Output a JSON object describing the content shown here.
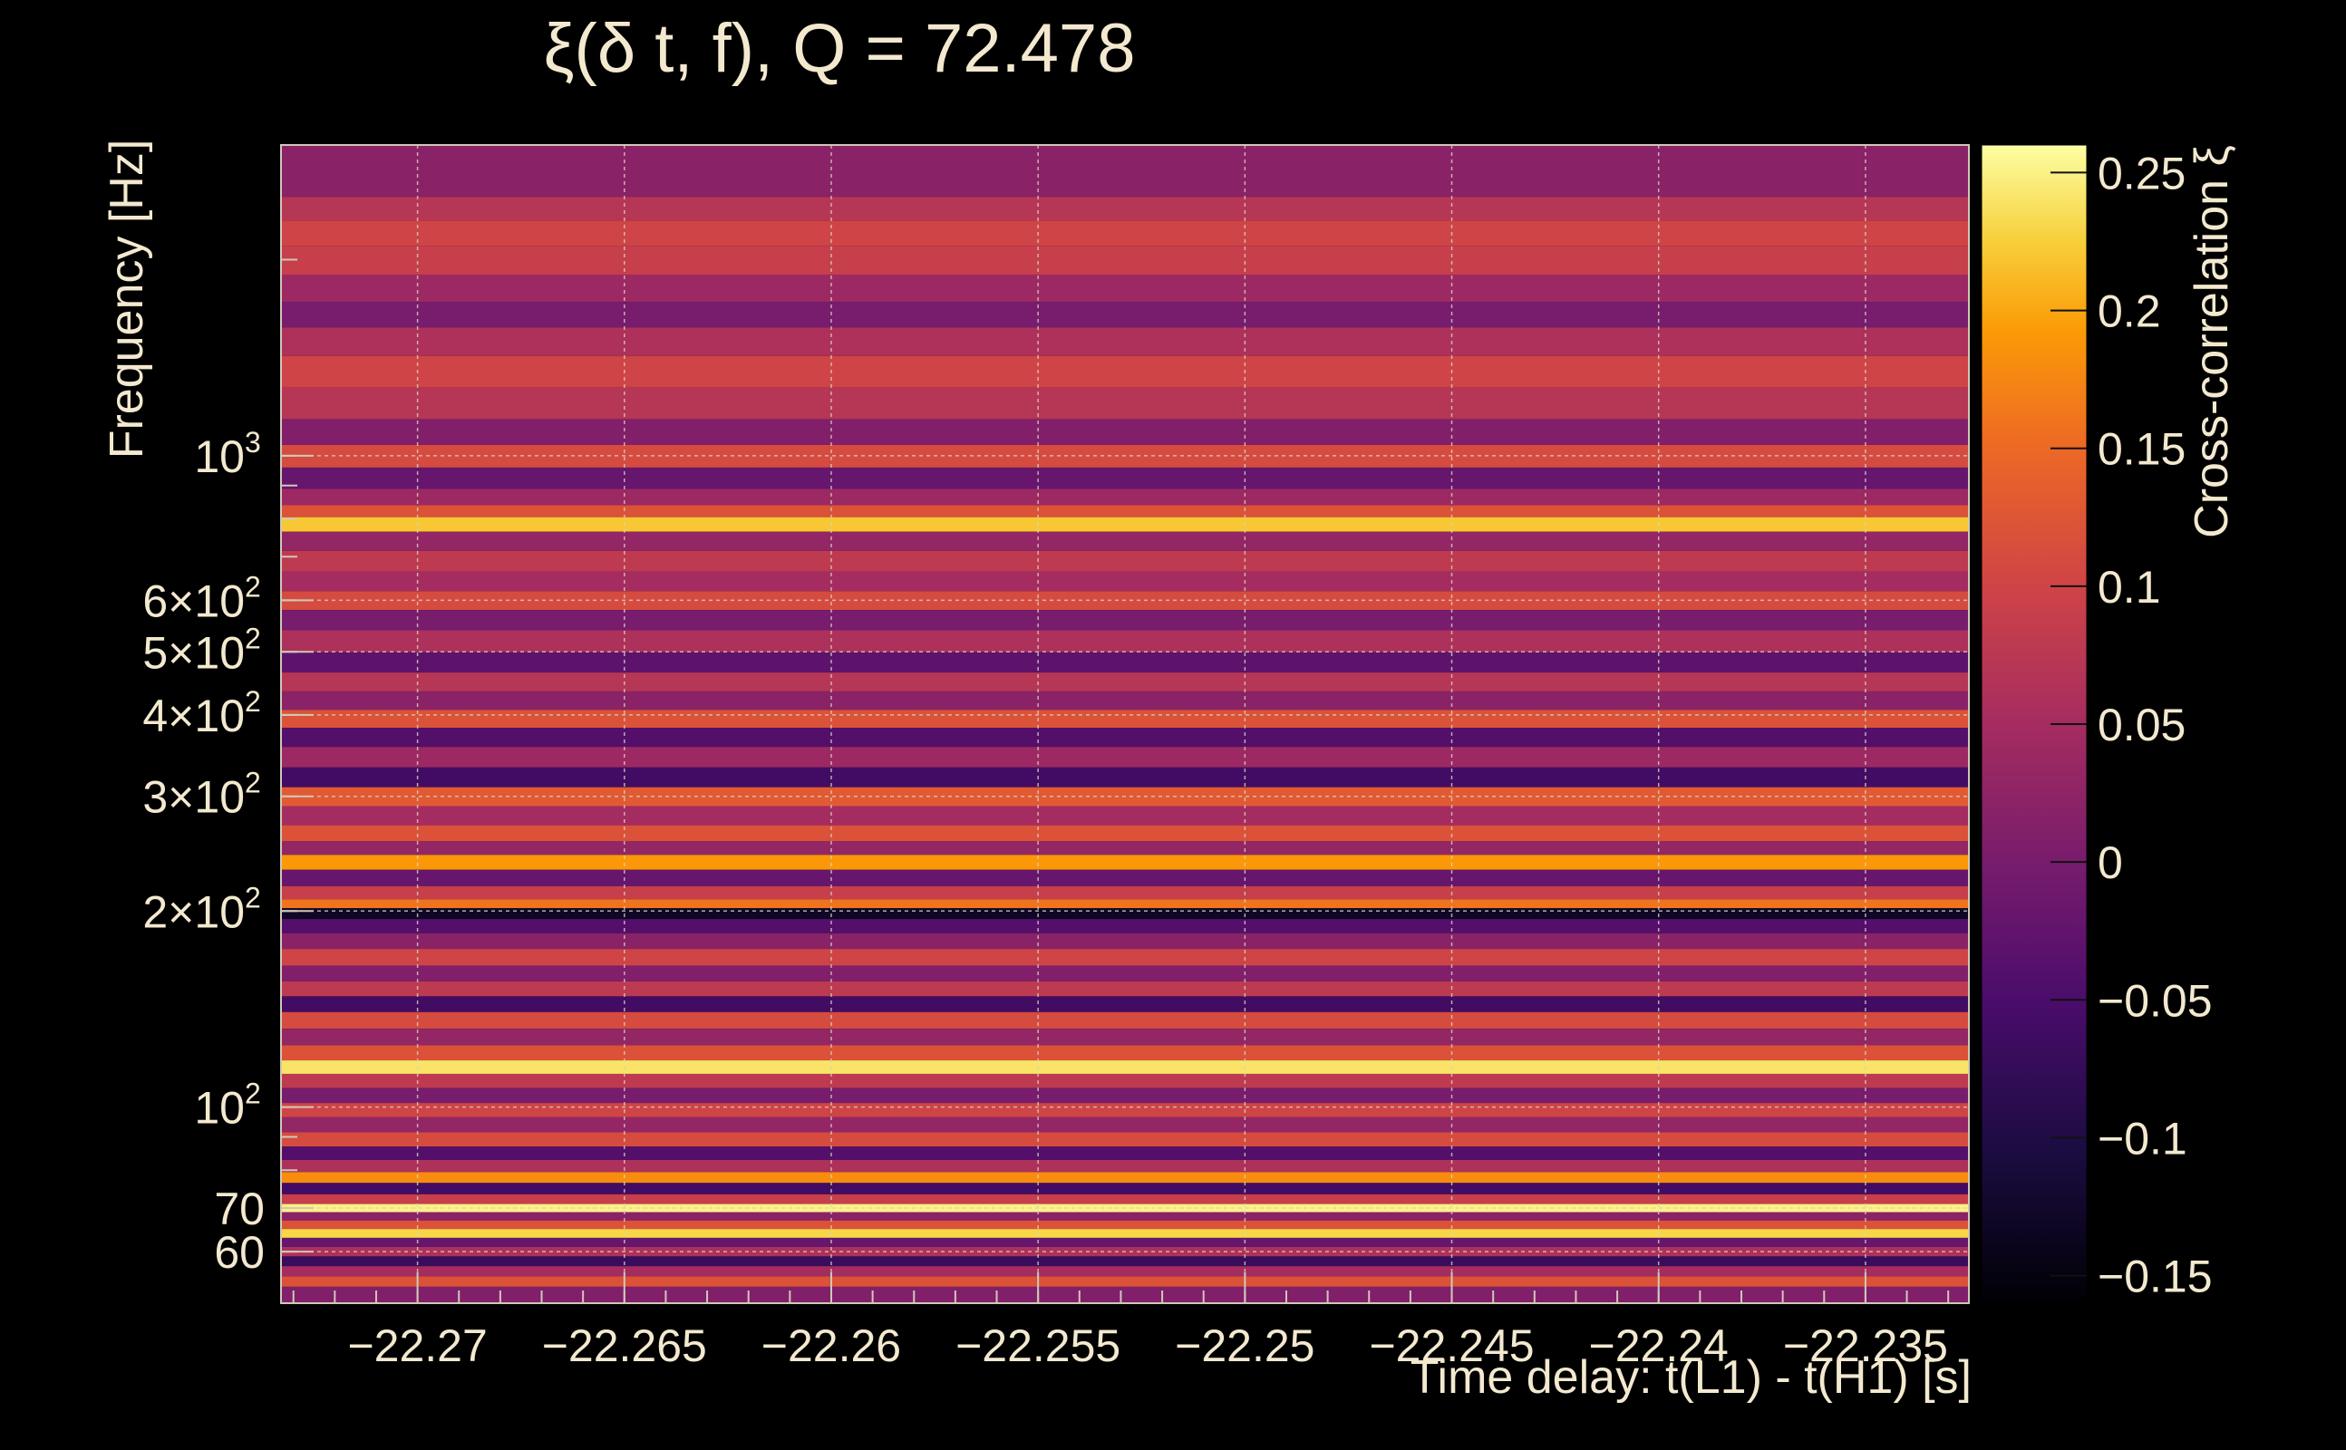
{
  "chart_data": {
    "type": "heatmap",
    "title": "ξ(δ t, f), Q = 72.478",
    "xlabel": "Time delay: t(L1) - t(H1) [s]",
    "ylabel": "Frequency [Hz]",
    "zlabel": "Cross-correlation ξ",
    "xlim": [
      -22.2733,
      -22.2325
    ],
    "ylim": [
      50,
      3000
    ],
    "yscale": "log",
    "zlim": [
      -0.16,
      0.26
    ],
    "colormap": "inferno",
    "grid": true,
    "x_ticks": [
      {
        "value": -22.27,
        "label": "−22.27"
      },
      {
        "value": -22.265,
        "label": "−22.265"
      },
      {
        "value": -22.26,
        "label": "−22.26"
      },
      {
        "value": -22.255,
        "label": "−22.255"
      },
      {
        "value": -22.25,
        "label": "−22.25"
      },
      {
        "value": -22.245,
        "label": "−22.245"
      },
      {
        "value": -22.24,
        "label": "−22.24"
      },
      {
        "value": -22.235,
        "label": "−22.235"
      }
    ],
    "y_ticks": [
      {
        "value": 60,
        "label": "60"
      },
      {
        "value": 70,
        "label": "70"
      },
      {
        "value": 100,
        "label": "10",
        "sup": "2"
      },
      {
        "value": 200,
        "label": "2×10",
        "sup": "2"
      },
      {
        "value": 300,
        "label": "3×10",
        "sup": "2"
      },
      {
        "value": 400,
        "label": "4×10",
        "sup": "2"
      },
      {
        "value": 500,
        "label": "5×10",
        "sup": "2"
      },
      {
        "value": 600,
        "label": "6×10",
        "sup": "2"
      },
      {
        "value": 1000,
        "label": "10",
        "sup": "3"
      }
    ],
    "z_ticks": [
      {
        "value": 0.25,
        "label": "0.25"
      },
      {
        "value": 0.2,
        "label": "0.2"
      },
      {
        "value": 0.15,
        "label": "0.15"
      },
      {
        "value": 0.1,
        "label": "0.1"
      },
      {
        "value": 0.05,
        "label": "0.05"
      },
      {
        "value": 0,
        "label": "0"
      },
      {
        "value": -0.05,
        "label": "−0.05"
      },
      {
        "value": -0.1,
        "label": "−0.1"
      },
      {
        "value": -0.15,
        "label": "−0.15"
      }
    ],
    "rows": [
      {
        "f": 2600,
        "v": 0.02
      },
      {
        "f": 2400,
        "v": 0.07
      },
      {
        "f": 2200,
        "v": 0.1
      },
      {
        "f": 2000,
        "v": 0.09
      },
      {
        "f": 1800,
        "v": 0.04
      },
      {
        "f": 1650,
        "v": 0.0
      },
      {
        "f": 1500,
        "v": 0.06
      },
      {
        "f": 1350,
        "v": 0.1
      },
      {
        "f": 1200,
        "v": 0.07
      },
      {
        "f": 1080,
        "v": 0.01
      },
      {
        "f": 1000,
        "v": 0.11
      },
      {
        "f": 920,
        "v": -0.02
      },
      {
        "f": 860,
        "v": 0.04
      },
      {
        "f": 820,
        "v": 0.12
      },
      {
        "f": 790,
        "v": 0.22
      },
      {
        "f": 740,
        "v": 0.03
      },
      {
        "f": 690,
        "v": 0.08
      },
      {
        "f": 640,
        "v": 0.05
      },
      {
        "f": 600,
        "v": 0.11
      },
      {
        "f": 560,
        "v": 0.0
      },
      {
        "f": 520,
        "v": 0.06
      },
      {
        "f": 480,
        "v": -0.03
      },
      {
        "f": 450,
        "v": 0.07
      },
      {
        "f": 420,
        "v": 0.02
      },
      {
        "f": 395,
        "v": 0.12
      },
      {
        "f": 370,
        "v": -0.04
      },
      {
        "f": 345,
        "v": 0.04
      },
      {
        "f": 320,
        "v": -0.06
      },
      {
        "f": 300,
        "v": 0.13
      },
      {
        "f": 280,
        "v": 0.05
      },
      {
        "f": 262,
        "v": 0.12
      },
      {
        "f": 250,
        "v": 0.03
      },
      {
        "f": 238,
        "v": 0.19
      },
      {
        "f": 225,
        "v": -0.02
      },
      {
        "f": 212,
        "v": 0.09
      },
      {
        "f": 205,
        "v": 0.16
      },
      {
        "f": 199,
        "v": -0.13
      },
      {
        "f": 190,
        "v": -0.04
      },
      {
        "f": 180,
        "v": 0.02
      },
      {
        "f": 170,
        "v": 0.1
      },
      {
        "f": 160,
        "v": 0.01
      },
      {
        "f": 152,
        "v": 0.08
      },
      {
        "f": 144,
        "v": -0.06
      },
      {
        "f": 136,
        "v": 0.11
      },
      {
        "f": 128,
        "v": 0.03
      },
      {
        "f": 121,
        "v": 0.12
      },
      {
        "f": 115,
        "v": 0.24
      },
      {
        "f": 110,
        "v": 0.08
      },
      {
        "f": 104,
        "v": 0.0
      },
      {
        "f": 99,
        "v": 0.1
      },
      {
        "f": 94,
        "v": 0.03
      },
      {
        "f": 89,
        "v": 0.11
      },
      {
        "f": 85,
        "v": -0.04
      },
      {
        "f": 81,
        "v": 0.06
      },
      {
        "f": 78,
        "v": 0.18
      },
      {
        "f": 75,
        "v": -0.06
      },
      {
        "f": 72,
        "v": 0.09
      },
      {
        "f": 70,
        "v": 0.25
      },
      {
        "f": 68,
        "v": 0.02
      },
      {
        "f": 66,
        "v": 0.12
      },
      {
        "f": 64,
        "v": 0.23
      },
      {
        "f": 62,
        "v": -0.02
      },
      {
        "f": 60,
        "v": 0.06
      },
      {
        "f": 58,
        "v": -0.07
      },
      {
        "f": 56,
        "v": 0.05
      },
      {
        "f": 54,
        "v": 0.12
      },
      {
        "f": 52,
        "v": 0.01
      }
    ]
  }
}
